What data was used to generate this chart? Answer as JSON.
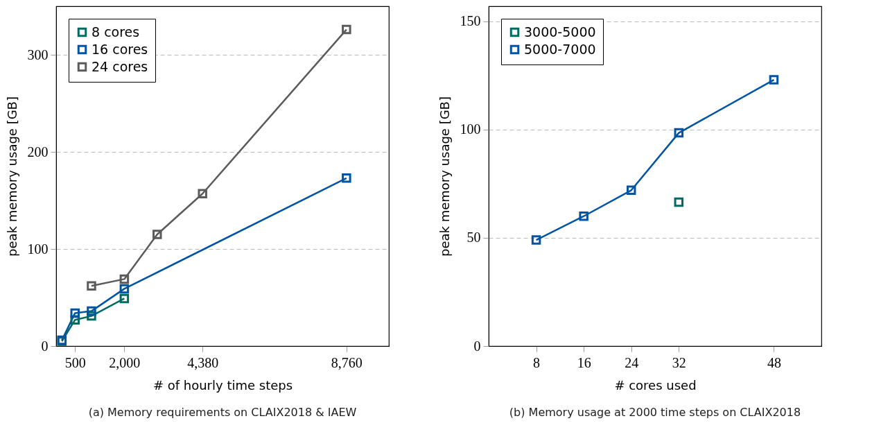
{
  "chart_data": [
    {
      "type": "line",
      "title": "(a) Memory requirements on CLAIX2018 & IAEW",
      "xlabel": "# of hourly time steps",
      "ylabel": "peak memory usage [GB]",
      "xlim": [
        -75,
        10050
      ],
      "xticks": [
        500,
        {
          "value": 2000,
          "label": "2,000"
        },
        {
          "value": 4380,
          "label": "4,380"
        },
        {
          "value": 8760,
          "label": "8,760"
        }
      ],
      "ylim": [
        0,
        350
      ],
      "yticks": [
        0,
        100,
        200,
        300
      ],
      "grid": "y",
      "legend": "top left",
      "marker": "square",
      "line_style": "solid",
      "series": [
        {
          "name": "8 cores",
          "color": "#006b63",
          "x": [
            100,
            500,
            1000,
            2000
          ],
          "values": [
            5,
            27,
            31,
            49
          ]
        },
        {
          "name": "16 cores",
          "color": "#0054a3",
          "x": [
            100,
            500,
            1000,
            2000,
            8760
          ],
          "values": [
            6,
            34,
            36,
            59,
            173
          ]
        },
        {
          "name": "24 cores",
          "color": "#5b5b5b",
          "x": [
            1000,
            2000,
            3000,
            4380,
            8760
          ],
          "values": [
            62,
            69,
            115,
            157,
            326
          ]
        }
      ]
    },
    {
      "type": "line",
      "title": "(b) Memory usage at 2000 time steps on CLAIX2018",
      "xlabel": "# cores used",
      "ylabel": "peak memory usage [GB]",
      "xlim": [
        0,
        56
      ],
      "xticks": [
        8,
        16,
        24,
        32,
        48
      ],
      "ylim": [
        0,
        157
      ],
      "yticks": [
        0,
        50,
        100,
        150
      ],
      "grid": "y",
      "legend": "top left",
      "marker": "square",
      "line_style": "solid",
      "series": [
        {
          "name": "3000-5000",
          "color": "#006b63",
          "x": [
            32
          ],
          "values": [
            66.5
          ]
        },
        {
          "name": "5000-7000",
          "color": "#0054a3",
          "x": [
            8,
            16,
            24,
            32,
            48
          ],
          "values": [
            49,
            60,
            72,
            98.5,
            123
          ]
        }
      ]
    }
  ]
}
